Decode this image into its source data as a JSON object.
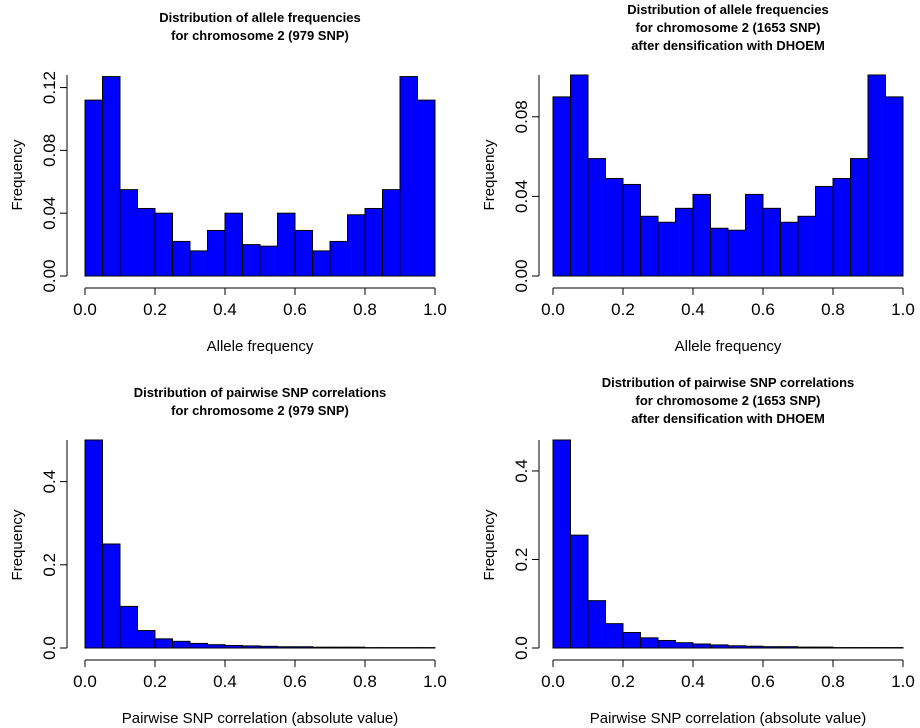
{
  "colors": {
    "bar_fill": "#0000ff",
    "bar_stroke": "#000000",
    "background": "#ffffff"
  },
  "chart_data": [
    {
      "type": "bar",
      "title_lines": [
        "Distribution of allele frequencies",
        "for chromosome 2 (979 SNP)"
      ],
      "xlabel": "Allele frequency",
      "ylabel": "Frequency",
      "xlim": [
        0,
        1
      ],
      "ylim": [
        0,
        0.128
      ],
      "xticks": [
        "0.0",
        "0.2",
        "0.4",
        "0.6",
        "0.8",
        "1.0"
      ],
      "xtick_values": [
        0,
        0.2,
        0.4,
        0.6,
        0.8,
        1.0
      ],
      "yticks": [
        "0.00",
        "0.04",
        "0.08",
        "0.12"
      ],
      "ytick_values": [
        0,
        0.04,
        0.08,
        0.12
      ],
      "bin_width": 0.05,
      "values": [
        0.112,
        0.127,
        0.055,
        0.043,
        0.04,
        0.022,
        0.016,
        0.029,
        0.04,
        0.02,
        0.019,
        0.04,
        0.029,
        0.016,
        0.022,
        0.039,
        0.043,
        0.055,
        0.127,
        0.112
      ],
      "grid": false
    },
    {
      "type": "bar",
      "title_lines": [
        "Distribution of allele frequencies",
        "for chromosome 2 (1653 SNP)",
        "after densification with DHOEM"
      ],
      "xlabel": "Allele frequency",
      "ylabel": "Frequency",
      "xlim": [
        0,
        1
      ],
      "ylim": [
        0,
        0.101
      ],
      "xticks": [
        "0.0",
        "0.2",
        "0.4",
        "0.6",
        "0.8",
        "1.0"
      ],
      "xtick_values": [
        0,
        0.2,
        0.4,
        0.6,
        0.8,
        1.0
      ],
      "yticks": [
        "0.00",
        "0.04",
        "0.08"
      ],
      "ytick_values": [
        0,
        0.04,
        0.08
      ],
      "bin_width": 0.05,
      "values": [
        0.09,
        0.101,
        0.059,
        0.049,
        0.046,
        0.03,
        0.027,
        0.034,
        0.041,
        0.024,
        0.023,
        0.041,
        0.034,
        0.027,
        0.03,
        0.045,
        0.049,
        0.059,
        0.101,
        0.09
      ],
      "grid": false
    },
    {
      "type": "bar",
      "title_lines": [
        "Distribution of pairwise SNP correlations",
        "for chromosome 2 (979 SNP)"
      ],
      "xlabel": "Pairwise SNP correlation (absolute value)",
      "ylabel": "Frequency",
      "xlim": [
        0,
        1
      ],
      "ylim": [
        0,
        0.5
      ],
      "xticks": [
        "0.0",
        "0.2",
        "0.4",
        "0.6",
        "0.8",
        "1.0"
      ],
      "xtick_values": [
        0,
        0.2,
        0.4,
        0.6,
        0.8,
        1.0
      ],
      "yticks": [
        "0.0",
        "0.2",
        "0.4"
      ],
      "ytick_values": [
        0,
        0.2,
        0.4
      ],
      "bin_width": 0.05,
      "values": [
        0.5,
        0.25,
        0.1,
        0.042,
        0.022,
        0.016,
        0.011,
        0.008,
        0.006,
        0.005,
        0.004,
        0.003,
        0.003,
        0.002,
        0.002,
        0.002,
        0.001,
        0.001,
        0.001,
        0.001
      ],
      "grid": false
    },
    {
      "type": "bar",
      "title_lines": [
        "Distribution of pairwise SNP correlations",
        "for chromosome 2 (1653 SNP)",
        "after densification with DHOEM"
      ],
      "xlabel": "Pairwise SNP correlation (absolute value)",
      "ylabel": "Frequency",
      "xlim": [
        0,
        1
      ],
      "ylim": [
        0,
        0.47
      ],
      "xticks": [
        "0.0",
        "0.2",
        "0.4",
        "0.6",
        "0.8",
        "1.0"
      ],
      "xtick_values": [
        0,
        0.2,
        0.4,
        0.6,
        0.8,
        1.0
      ],
      "yticks": [
        "0.0",
        "0.2",
        "0.4"
      ],
      "ytick_values": [
        0,
        0.2,
        0.4
      ],
      "bin_width": 0.05,
      "values": [
        0.47,
        0.255,
        0.107,
        0.055,
        0.035,
        0.023,
        0.017,
        0.012,
        0.009,
        0.007,
        0.005,
        0.004,
        0.003,
        0.003,
        0.002,
        0.002,
        0.001,
        0.001,
        0.001,
        0.001
      ],
      "grid": false
    }
  ]
}
